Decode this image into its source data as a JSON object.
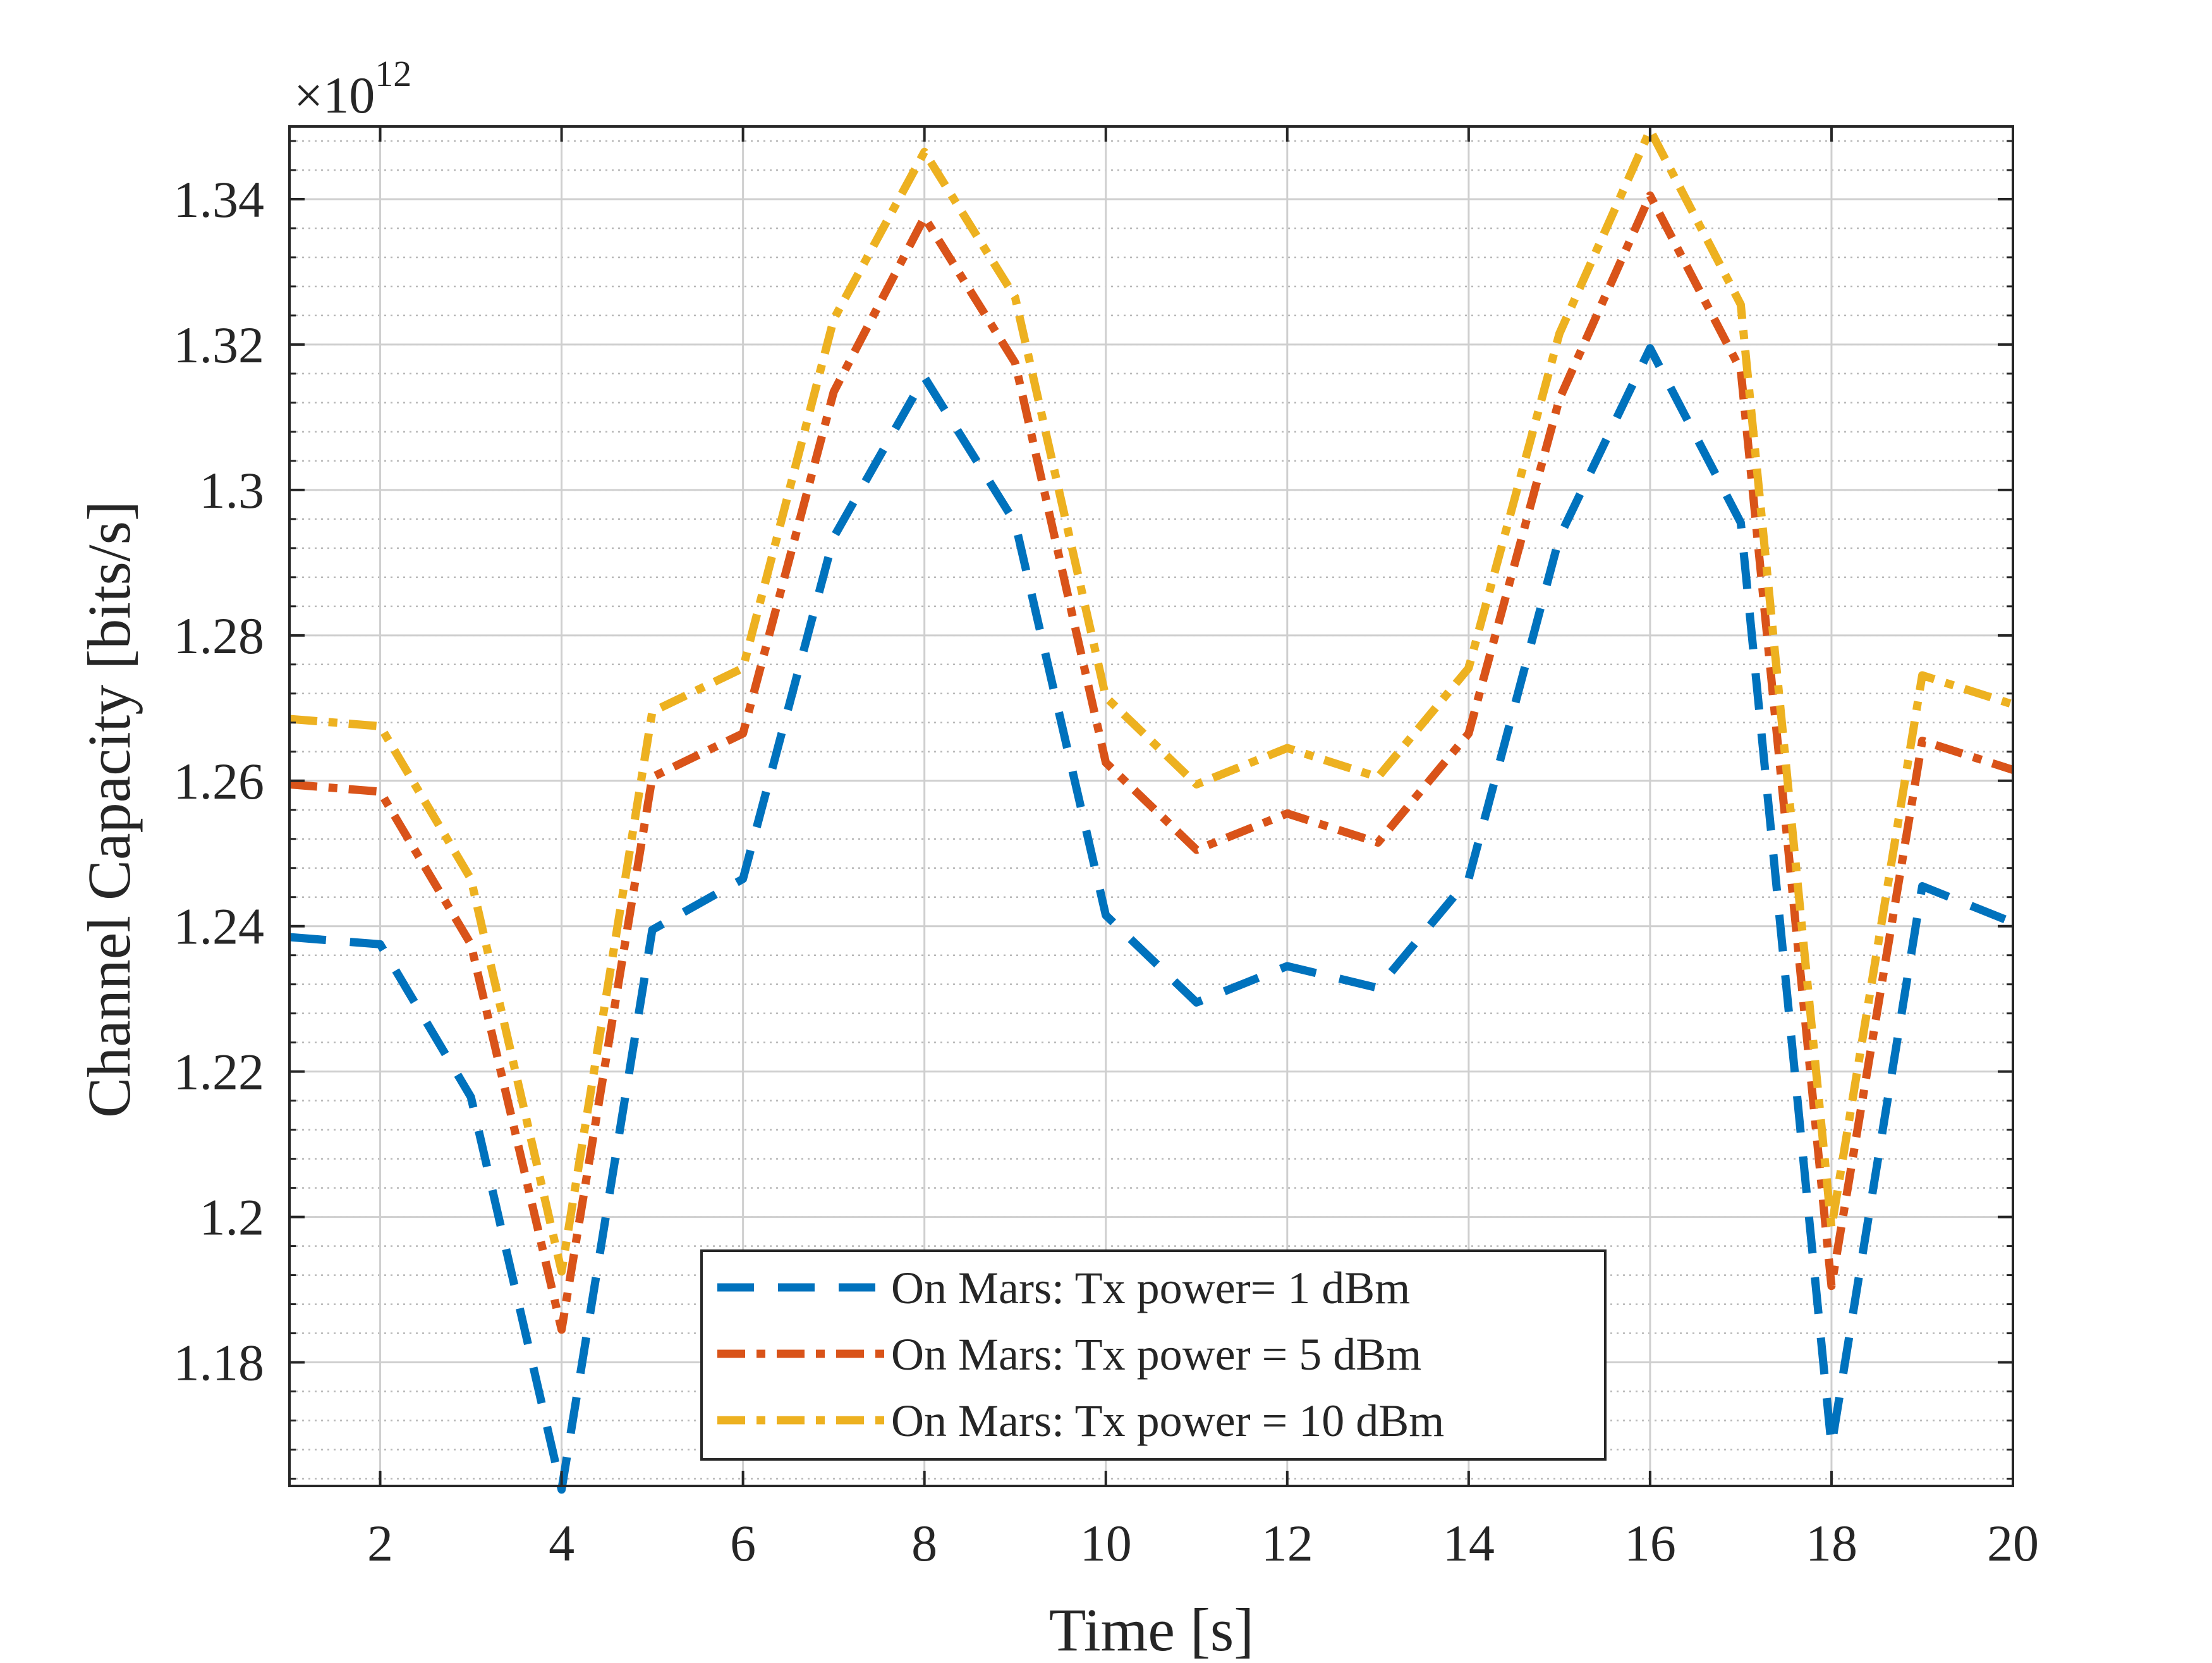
{
  "chart_data": {
    "type": "line",
    "title": "",
    "xlabel": "Time [s]",
    "ylabel": "Channel Capacity [bits/s]",
    "y_exponent_label": {
      "base": "×10",
      "power": "12"
    },
    "xlim": [
      1,
      20
    ],
    "ylim": [
      1.163,
      1.35
    ],
    "grid": true,
    "minor_grid": true,
    "legend_position": "bottom-center",
    "x_ticks": [
      2,
      4,
      6,
      8,
      10,
      12,
      14,
      16,
      18,
      20
    ],
    "x_tick_labels": [
      "2",
      "4",
      "6",
      "8",
      "10",
      "12",
      "14",
      "16",
      "18",
      "20"
    ],
    "y_ticks": [
      1.18,
      1.2,
      1.22,
      1.24,
      1.26,
      1.28,
      1.3,
      1.32,
      1.34
    ],
    "y_tick_labels": [
      "1.18",
      "1.2",
      "1.22",
      "1.24",
      "1.26",
      "1.28",
      "1.3",
      "1.32",
      "1.34"
    ],
    "x": [
      1,
      2,
      3,
      4,
      5,
      6,
      7,
      8,
      9,
      10,
      11,
      12,
      13,
      14,
      15,
      16,
      17,
      18,
      19,
      20
    ],
    "series": [
      {
        "name": "On Mars: Tx power= 1 dBm",
        "color": "#0072BD",
        "dash": "dashed",
        "values": [
          1.2385,
          1.2375,
          1.2165,
          1.1625,
          1.2395,
          1.2465,
          1.2935,
          1.3155,
          1.2955,
          1.2415,
          1.2295,
          1.2345,
          1.2315,
          1.2465,
          1.2935,
          1.3195,
          1.2955,
          1.1685,
          1.2455,
          1.2405
        ]
      },
      {
        "name": "On Mars: Tx power = 5 dBm",
        "color": "#D95319",
        "dash": "dashdot",
        "values": [
          1.2595,
          1.2585,
          1.2375,
          1.1845,
          1.2605,
          1.2665,
          1.3135,
          1.3375,
          1.3175,
          1.2625,
          1.2505,
          1.2555,
          1.2515,
          1.2665,
          1.3125,
          1.3405,
          1.3165,
          1.1905,
          1.2655,
          1.2615
        ]
      },
      {
        "name": "On Mars: Tx power = 10 dBm",
        "color": "#EDB120",
        "dash": "dashdot",
        "values": [
          1.2685,
          1.2675,
          1.2465,
          1.1925,
          1.2695,
          1.2755,
          1.3235,
          1.3465,
          1.3265,
          1.2715,
          1.2595,
          1.2645,
          1.2605,
          1.2755,
          1.3215,
          1.3495,
          1.3255,
          1.1985,
          1.2745,
          1.2705
        ]
      }
    ]
  }
}
